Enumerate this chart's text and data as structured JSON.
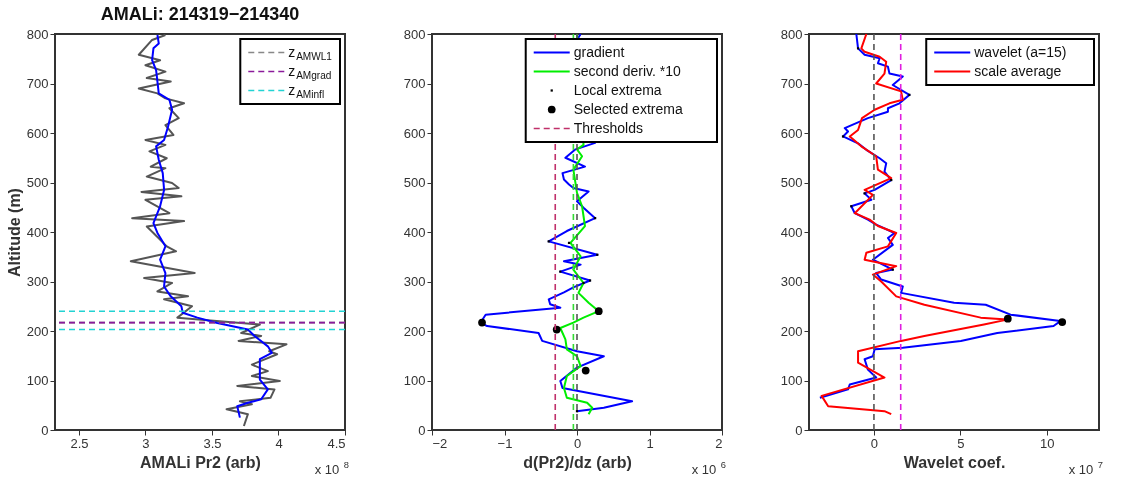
{
  "chart_data": [
    {
      "type": "line",
      "title": "AMALi: 214319−214340",
      "xlabel": "AMALi Pr2 (arb)",
      "ylabel": "Altitude (m)",
      "xlim": [
        2.32,
        4.5
      ],
      "xticks": [
        2.5,
        3,
        3.5,
        4,
        4.5
      ],
      "ylim": [
        0,
        800
      ],
      "yticks": [
        0,
        100,
        200,
        300,
        400,
        500,
        600,
        700,
        800
      ],
      "legend": "top right",
      "grid": false,
      "annotations": [
        "x 10$^{8}$"
      ],
      "series": [
        {
          "color": "#555555",
          "x": [
            3.15,
            3.05,
            2.95,
            3.11,
            3.0,
            3.15,
            3.01,
            3.19,
            2.95,
            3.09,
            3.15,
            3.29,
            3.18,
            3.25,
            3.15,
            3.21,
            3.0,
            3.15,
            3.03,
            3.16,
            3.04,
            3.15,
            3.01,
            3.2,
            3.25,
            2.97,
            3.27,
            3.0,
            3.18,
            2.9,
            3.29,
            3.01,
            3.06,
            3.16,
            3.23,
            2.89,
            3.37,
            2.99,
            3.2,
            3.09,
            3.32,
            3.14,
            3.35,
            3.24,
            3.86,
            3.72,
            3.87,
            3.7,
            4.06,
            3.93,
            3.99,
            3.8,
            3.92,
            3.8,
            4.01,
            3.69,
            3.97,
            3.94,
            3.71,
            3.8,
            3.61,
            3.77,
            3.74
          ],
          "values": [
            798,
            788,
            758,
            747,
            737,
            724,
            711,
            704,
            690,
            680,
            670,
            660,
            650,
            630,
            616,
            596,
            586,
            576,
            563,
            549,
            532,
            529,
            512,
            499,
            489,
            481,
            472,
            465,
            438,
            428,
            422,
            411,
            398,
            371,
            361,
            341,
            317,
            307,
            297,
            280,
            270,
            264,
            250,
            227,
            213,
            196,
            190,
            180,
            173,
            159,
            153,
            132,
            119,
            109,
            99,
            89,
            82,
            65,
            58,
            52,
            42,
            32,
            8
          ]
        },
        {
          "color": "#0000ff",
          "x": [
            3.09,
            3.1,
            3.06,
            3.05,
            3.08,
            3.09,
            3.1,
            3.18,
            3.2,
            3.17,
            3.14,
            3.08,
            3.1,
            3.13,
            3.14,
            3.11,
            3.06,
            3.09,
            3.15,
            3.11,
            3.15,
            3.14,
            3.19,
            3.27,
            3.28,
            3.39,
            3.54,
            3.77,
            3.82,
            3.92,
            3.95,
            3.86,
            3.86,
            3.92,
            3.87,
            3.77,
            3.69,
            3.71
          ],
          "values": [
            798,
            781,
            771,
            747,
            727,
            704,
            680,
            667,
            647,
            613,
            586,
            573,
            546,
            519,
            485,
            452,
            418,
            398,
            371,
            344,
            317,
            290,
            270,
            250,
            237,
            227,
            216,
            203,
            190,
            169,
            156,
            143,
            102,
            82,
            62,
            55,
            48,
            25
          ]
        }
      ],
      "ref_lines": [
        {
          "axis": "y",
          "value": 217,
          "label": "z$_{AMWL1}$",
          "color": "#888888",
          "line_style": "dashed"
        },
        {
          "axis": "y",
          "value": 217,
          "label": "z$_{AMgrad}$",
          "color": "#8b1a9b",
          "line_style": "dashed"
        },
        {
          "axis": "y",
          "value": 240,
          "label": "z$_{AMinfl}$",
          "color": "#22d3d3",
          "line_style": "dashed"
        },
        {
          "axis": "y",
          "value": 203,
          "label": null,
          "color": "#22d3d3",
          "line_style": "dashed"
        }
      ]
    },
    {
      "type": "line",
      "xlabel": "d(Pr2)/dz (arb)",
      "xlim": [
        -2,
        2
      ],
      "xticks": [
        -2,
        -1,
        0,
        1,
        2
      ],
      "ylim": [
        0,
        800
      ],
      "yticks": [
        0,
        100,
        200,
        300,
        400,
        500,
        600,
        700,
        800
      ],
      "legend": "top right",
      "grid": false,
      "annotations": [
        "x 10$^{6}$"
      ],
      "series": [
        {
          "name": "gradient",
          "color": "#0000ff",
          "x": [
            0.05,
            0,
            0.25,
            -0.02,
            -0.16,
            0.11,
            -0.2,
            -0.18,
            -0.11,
            -0.05,
            0.16,
            0,
            0.09,
            0.25,
            -0.14,
            -0.39,
            0.28,
            -0.18,
            0.05,
            -0.23,
            0.18,
            -0.05,
            -0.18,
            -0.39,
            -0.37,
            -0.23,
            -1.26,
            -1.33,
            -1.24,
            -0.53,
            -0.48,
            0,
            0.37,
            0,
            -0.23,
            -0.2,
            0.76,
            0.37,
            0
          ],
          "values": [
            800,
            788,
            580,
            567,
            550,
            532,
            519,
            506,
            496,
            489,
            482,
            462,
            449,
            428,
            402,
            381,
            354,
            341,
            334,
            320,
            302,
            288,
            278,
            264,
            254,
            247,
            233,
            217,
            210,
            196,
            180,
            159,
            149,
            126,
            99,
            85,
            58,
            45,
            38
          ]
        },
        {
          "name": "second deriv. *10",
          "color": "#00ee00",
          "x": [
            0,
            0.09,
            0,
            0.07,
            -0.05,
            0,
            0.07,
            0.11,
            -0.09,
            0.05,
            -0.05,
            0.09,
            0.02,
            0.16,
            0.3,
            0.09,
            -0.05,
            -0.23,
            -0.16,
            -0.14,
            0,
            0.05,
            -0.14,
            -0.18,
            -0.14,
            0.14,
            0.21,
            0.16
          ],
          "values": [
            800,
            576,
            567,
            553,
            526,
            479,
            452,
            412,
            378,
            351,
            324,
            297,
            277,
            257,
            240,
            227,
            217,
            206,
            183,
            163,
            149,
            129,
            109,
            85,
            65,
            55,
            45,
            32
          ]
        },
        {
          "name": "Local extrema",
          "type": "scatter",
          "marker": "square",
          "color": "#000000",
          "x": [
            0.25,
            -0.39,
            0.28,
            -0.23,
            0.18,
            0,
            -0.11,
            0.09
          ],
          "values": [
            428,
            381,
            354,
            320,
            302,
            38,
            378,
            297
          ]
        },
        {
          "name": "Selected extrema",
          "type": "scatter",
          "marker": "circle",
          "color": "#000000",
          "x": [
            -1.31,
            -0.28,
            0.3,
            0.12
          ],
          "values": [
            217,
            203,
            240,
            120
          ]
        }
      ],
      "ref_lines": [
        {
          "axis": "x",
          "value": -0.3,
          "label": "Thresholds",
          "color": "#c0306a",
          "line_style": "dashed"
        },
        {
          "axis": "x",
          "value": -0.05,
          "label": null,
          "color": "#33dd33",
          "line_style": "dashed"
        },
        {
          "axis": "x",
          "value": 0,
          "label": null,
          "color": "#555555",
          "line_style": "dashed"
        }
      ]
    },
    {
      "type": "line",
      "xlabel": "Wavelet coef.",
      "xlim": [
        -3.76,
        13.03
      ],
      "xticks": [
        0,
        5,
        10
      ],
      "ylim": [
        0,
        800
      ],
      "yticks": [
        0,
        100,
        200,
        300,
        400,
        500,
        600,
        700,
        800
      ],
      "legend": "top right",
      "grid": false,
      "annotations": [
        "x 10$^{7}$"
      ],
      "series": [
        {
          "name": "wavelet (a=15)",
          "color": "#0000ff",
          "x": [
            -1.02,
            -0.92,
            -0.54,
            0.33,
            0.23,
            0.81,
            0.9,
            1.67,
            1.09,
            2.05,
            1.48,
            0.81,
            0.81,
            -0.35,
            -1.69,
            -1.5,
            -1.79,
            -0.92,
            -0.44,
            0.33,
            0.71,
            0.61,
            1.0,
            0.04,
            -0.54,
            -0.15,
            -1.31,
            -1.11,
            -0.35,
            0.13,
            1.19,
            0.81,
            1.09,
            -0.06,
            1.09,
            0.13,
            0.42,
            1.67,
            1.57,
            4.64,
            6.47,
            7.91,
            10.79,
            10.4,
            7.14,
            5.03,
            1.67,
            0.04,
            -0.06,
            -0.54,
            -0.35,
            0.13,
            -1.4,
            -1.5,
            -3.13
          ],
          "values": [
            800,
            771,
            758,
            751,
            741,
            734,
            720,
            714,
            697,
            677,
            660,
            650,
            643,
            630,
            610,
            603,
            593,
            579,
            566,
            549,
            539,
            522,
            505,
            485,
            478,
            465,
            452,
            438,
            425,
            415,
            398,
            388,
            374,
            344,
            324,
            317,
            304,
            290,
            277,
            257,
            253,
            233,
            220,
            210,
            196,
            180,
            166,
            163,
            149,
            143,
            122,
            106,
            92,
            82,
            65
          ]
        },
        {
          "name": "scale average",
          "color": "#ff0000",
          "x": [
            -0.44,
            -0.73,
            -0.54,
            0.33,
            0.71,
            0.61,
            0.13,
            1.57,
            1.67,
            0.9,
            0.04,
            -0.69,
            -0.92,
            -1.4,
            -0.73,
            0.13,
            0.23,
            1.0,
            -0.54,
            -0.06,
            -1.11,
            -0.25,
            0.23,
            1.29,
            0.81,
            -0.44,
            -0.54,
            1.29,
            -0.06,
            0.42,
            1.29,
            2.92,
            6.18,
            7.71,
            6.37,
            2.92,
            1.57,
            -0.92,
            -0.92,
            0.61,
            -3.03,
            -2.65,
            0.61,
            1.0
          ],
          "values": [
            800,
            771,
            764,
            754,
            744,
            720,
            700,
            684,
            667,
            660,
            647,
            630,
            606,
            593,
            573,
            553,
            526,
            509,
            485,
            475,
            438,
            425,
            412,
            398,
            371,
            358,
            344,
            331,
            314,
            300,
            270,
            253,
            227,
            223,
            213,
            190,
            180,
            159,
            136,
            106,
            69,
            48,
            38,
            32
          ]
        },
        {
          "type": "scatter",
          "marker": "square",
          "color": "#000000",
          "x": [
            -0.92,
            2.05,
            -1.79,
            1.0,
            -1.31,
            1.09,
            -0.54
          ],
          "values": [
            771,
            677,
            593,
            505,
            452,
            324,
            478
          ]
        },
        {
          "type": "scatter",
          "marker": "circle",
          "color": "#000000",
          "x": [
            10.9,
            7.75
          ],
          "values": [
            218,
            225
          ]
        }
      ],
      "ref_lines": [
        {
          "axis": "x",
          "value": 0,
          "label": null,
          "color": "#555555",
          "line_style": "dashed"
        },
        {
          "axis": "x",
          "value": 1.55,
          "label": null,
          "color": "#e020e0",
          "line_style": "dashed"
        }
      ]
    }
  ]
}
